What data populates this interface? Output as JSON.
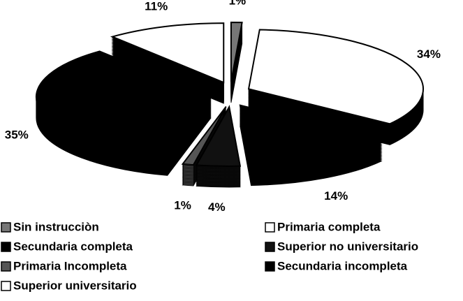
{
  "chart_data": {
    "type": "pie",
    "categories": [
      "Sin instrucciòn",
      "Primaria completa",
      "Secundaria completa",
      "Superior no universitario",
      "Primaria Incompleta",
      "Secundaria incompleta",
      "Superior universitario"
    ],
    "values": [
      1,
      34,
      14,
      4,
      1,
      35,
      11
    ],
    "value_labels": [
      "1%",
      "34%",
      "14%",
      "4%",
      "1%",
      "35%",
      "11%"
    ],
    "colors": [
      "#777777",
      "#ffffff",
      "#000000",
      "#111111",
      "#555555",
      "#000000",
      "#ffffff"
    ],
    "legend": "bottom"
  }
}
